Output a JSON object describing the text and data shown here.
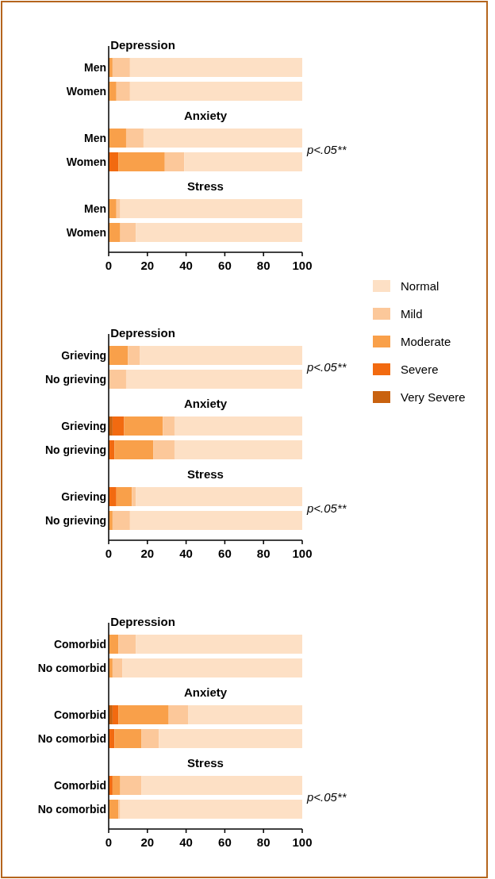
{
  "chart_data": [
    {
      "type": "bar",
      "orientation": "horizontal",
      "stacked": true,
      "categories": [
        "Men",
        "Women",
        "Men",
        "Women",
        "Men",
        "Women"
      ],
      "series": [
        {
          "color": "#c9620f",
          "values": [
            0,
            0,
            0,
            0,
            0,
            0
          ]
        },
        {
          "color": "#f26a10",
          "values": [
            0,
            0,
            0,
            5,
            0,
            0
          ]
        },
        {
          "color": "#f9a04a",
          "values": [
            2,
            4,
            9,
            24,
            4,
            6
          ]
        },
        {
          "color": "#fcc89a",
          "values": [
            9,
            7,
            9,
            10,
            2,
            8
          ]
        },
        {
          "color": "#fde0c5",
          "values": [
            89,
            89,
            82,
            61,
            94,
            86
          ]
        }
      ],
      "xlim": [
        0,
        100
      ],
      "xticks": [
        0,
        20,
        40,
        60,
        80,
        100
      ],
      "legend": false,
      "annotations": [
        "Depression",
        "Anxiety",
        "Stress",
        "p<.05**"
      ]
    },
    {
      "type": "bar",
      "orientation": "horizontal",
      "stacked": true,
      "categories": [
        "Grieving",
        "No grieving",
        "Grieving",
        "No grieving",
        "Grieving",
        "No grieving"
      ],
      "series": [
        {
          "name": "Very Severe",
          "color": "#c9620f",
          "values": [
            0,
            0,
            2,
            0,
            0,
            0
          ]
        },
        {
          "name": "Severe",
          "color": "#f26a10",
          "values": [
            0,
            0,
            6,
            3,
            4,
            0
          ]
        },
        {
          "name": "Moderate",
          "color": "#f9a04a",
          "values": [
            10,
            0,
            20,
            20,
            8,
            2
          ]
        },
        {
          "name": "Mild",
          "color": "#fcc89a",
          "values": [
            6,
            9,
            6,
            11,
            2,
            9
          ]
        },
        {
          "name": "Normal",
          "color": "#fde0c5",
          "values": [
            84,
            91,
            66,
            66,
            86,
            89
          ]
        }
      ],
      "xlim": [
        0,
        100
      ],
      "xticks": [
        0,
        20,
        40,
        60,
        80,
        100
      ],
      "legend": "right",
      "annotations": [
        "Depression",
        "Anxiety",
        "Stress",
        "p<.05**",
        "p<.05**"
      ]
    },
    {
      "type": "bar",
      "orientation": "horizontal",
      "stacked": true,
      "categories": [
        "Comorbid",
        "No comorbid",
        "Comorbid",
        "No comorbid",
        "Comorbid",
        "No comorbid"
      ],
      "series": [
        {
          "color": "#c9620f",
          "values": [
            0,
            0,
            2,
            0,
            0,
            0
          ]
        },
        {
          "color": "#f26a10",
          "values": [
            0,
            0,
            3,
            3,
            2,
            0
          ]
        },
        {
          "color": "#f9a04a",
          "values": [
            5,
            2,
            26,
            14,
            4,
            5
          ]
        },
        {
          "color": "#fcc89a",
          "values": [
            9,
            5,
            10,
            9,
            11,
            1
          ]
        },
        {
          "color": "#fde0c5",
          "values": [
            86,
            93,
            59,
            74,
            83,
            94
          ]
        }
      ],
      "xlim": [
        0,
        100
      ],
      "xticks": [
        0,
        20,
        40,
        60,
        80,
        100
      ],
      "legend": false,
      "annotations": [
        "Depression",
        "Anxiety",
        "Stress",
        "p<.05**"
      ]
    }
  ]
}
